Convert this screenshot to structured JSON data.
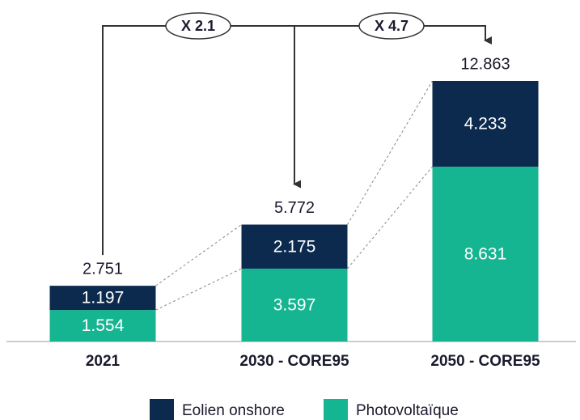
{
  "chart_data": {
    "type": "stacked_bar",
    "categories": [
      "2021",
      "2030 - CORE95",
      "2050 - CORE95"
    ],
    "series": [
      {
        "name": "Photovoltaïque",
        "color": "#16b592",
        "values": [
          1.554,
          3.597,
          8.631
        ]
      },
      {
        "name": "Eolien onshore",
        "color": "#0c2a4e",
        "values": [
          1.197,
          2.175,
          4.233
        ]
      }
    ],
    "totals": [
      2.751,
      5.772,
      12.863
    ],
    "annotations": [
      "X 2.1",
      "X 4.7"
    ]
  }
}
